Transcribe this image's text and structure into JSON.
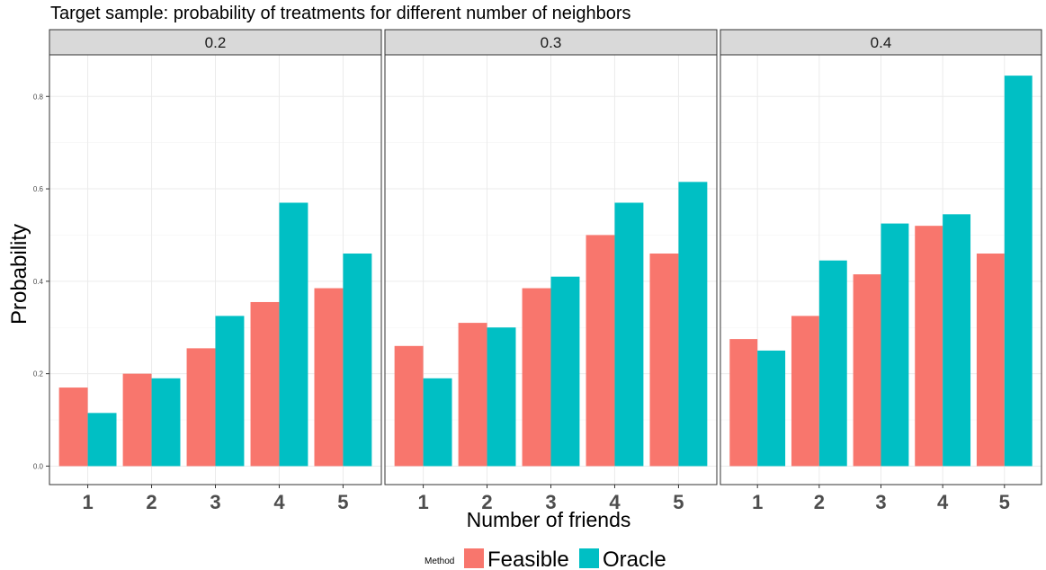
{
  "chart_data": {
    "type": "bar",
    "title": "Target sample: probability of treatments for different number of neighbors",
    "xlabel": "Number of friends",
    "ylabel": "Probability",
    "ylim": [
      -0.04,
      0.89
    ],
    "yticks": [
      "0.0",
      "0.2",
      "0.4",
      "0.6",
      "0.8"
    ],
    "ytick_values": [
      0,
      0.2,
      0.4,
      0.6,
      0.8
    ],
    "categories": [
      "1",
      "2",
      "3",
      "4",
      "5"
    ],
    "grid": true,
    "legend": {
      "title": "Method",
      "position": "bottom",
      "entries": [
        "Feasible",
        "Oracle"
      ]
    },
    "colors": {
      "Feasible": "#F8766D",
      "Oracle": "#00BFC4"
    },
    "panels": [
      {
        "label": "0.2",
        "series": [
          {
            "name": "Feasible",
            "values": [
              0.17,
              0.2,
              0.255,
              0.355,
              0.385
            ]
          },
          {
            "name": "Oracle",
            "values": [
              0.115,
              0.19,
              0.325,
              0.57,
              0.46
            ]
          }
        ]
      },
      {
        "label": "0.3",
        "series": [
          {
            "name": "Feasible",
            "values": [
              0.26,
              0.31,
              0.385,
              0.5,
              0.46
            ]
          },
          {
            "name": "Oracle",
            "values": [
              0.19,
              0.3,
              0.41,
              0.57,
              0.615
            ]
          }
        ]
      },
      {
        "label": "0.4",
        "series": [
          {
            "name": "Feasible",
            "values": [
              0.275,
              0.325,
              0.415,
              0.52,
              0.46
            ]
          },
          {
            "name": "Oracle",
            "values": [
              0.25,
              0.445,
              0.525,
              0.545,
              0.845
            ]
          }
        ]
      }
    ]
  }
}
